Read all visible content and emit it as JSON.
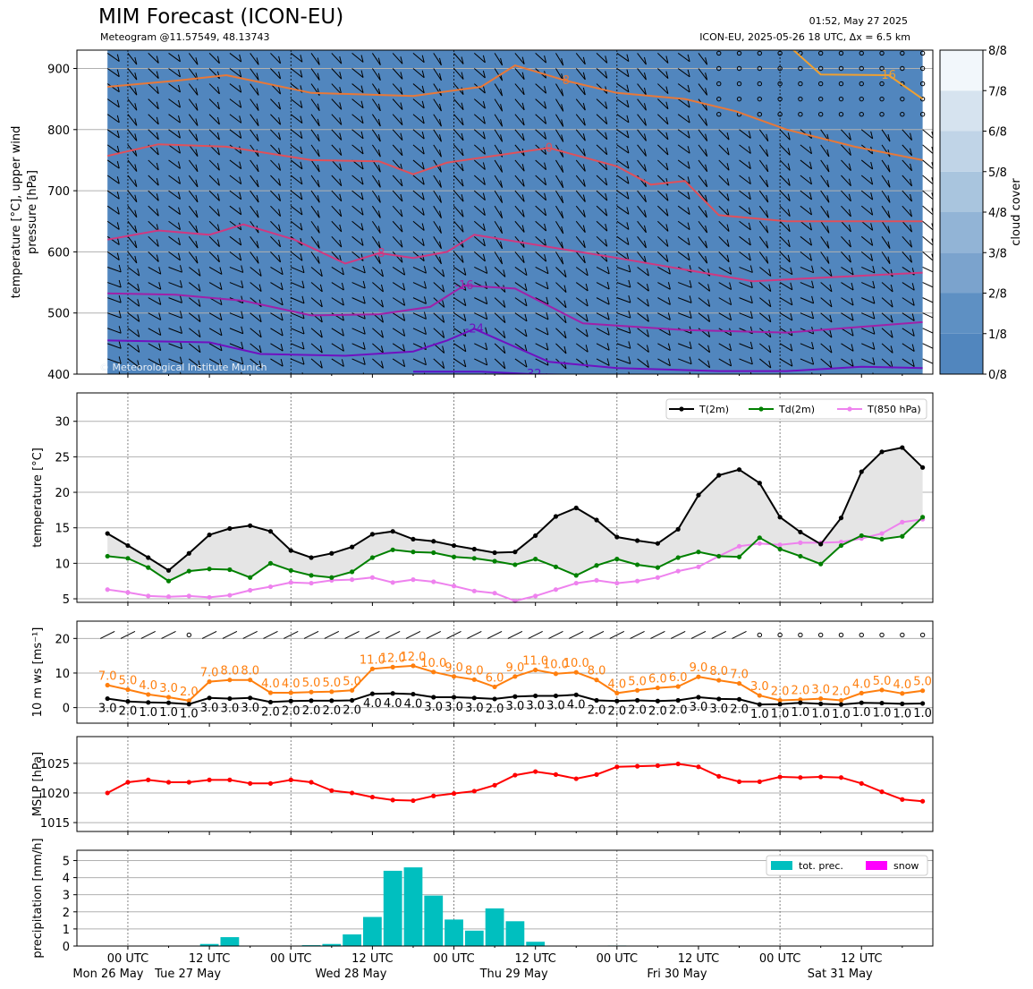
{
  "header": {
    "title": "MIM Forecast (ICON-EU)",
    "subtitle": "Meteogram @11.57549, 48.13743",
    "timestamp": "01:52, May 27 2025",
    "run_info": "ICON-EU, 2025-05-26 18 UTC, Δx = 6.5 km",
    "copyright": "© Meteorological Institute Munich"
  },
  "colors": {
    "cloud_levels": [
      "#5186be",
      "#5e90c3",
      "#7ba3cd",
      "#92b4d6",
      "#a9c5de",
      "#c0d4e7",
      "#d6e3ef",
      "#f2f7fb"
    ],
    "t2m": "#000000",
    "td2m": "#008000",
    "t850": "#ee82ee",
    "wind_speed": "#ff7f0e",
    "wind_gust_base": "#000000",
    "mslp": "#ff0000",
    "precip": "#00bfbf",
    "snow": "#ff00ff",
    "fill": "#e5e5e5"
  },
  "time_axis": {
    "ticks": [
      {
        "hour": 6,
        "label": "00 UTC"
      },
      {
        "hour": 30,
        "label": "12 UTC"
      },
      {
        "hour": 54,
        "label": "00 UTC"
      },
      {
        "hour": 78,
        "label": "12 UTC"
      },
      {
        "hour": 102,
        "label": "00 UTC"
      },
      {
        "hour": 126,
        "label": "12 UTC"
      },
      {
        "hour": 150,
        "label": "00 UTC"
      },
      {
        "hour": 174,
        "label": "12 UTC"
      },
      {
        "hour": 198,
        "label": "00 UTC"
      },
      {
        "hour": 222,
        "label": "12 UTC"
      }
    ],
    "days": [
      {
        "hour": 6,
        "label": "Mon 26 May"
      },
      {
        "hour": 30,
        "label": "Tue 27 May"
      },
      {
        "hour": 78,
        "label": "Wed 28 May"
      },
      {
        "hour": 126,
        "label": "Thu 29 May"
      },
      {
        "hour": 174,
        "label": "Fri 30 May"
      },
      {
        "hour": 222,
        "label": "Sat 31 May"
      }
    ],
    "xlim": [
      -9,
      243
    ]
  },
  "chart_data": [
    {
      "type": "heatmap",
      "name": "upper-air",
      "ylabel": "temperature [$^\\circ$C], upper wind\npressure [hPa]",
      "ylim": [
        930,
        400
      ],
      "yticks": [
        400,
        500,
        600,
        700,
        800,
        900
      ],
      "colorbar_label": "cloud cover",
      "colorbar_ticks": [
        "0/8",
        "1/8",
        "2/8",
        "3/8",
        "4/8",
        "5/8",
        "6/8",
        "7/8",
        "8/8"
      ],
      "isotherms": [
        {
          "label": "-32",
          "points": [
            [
              90,
              404
            ],
            [
              110,
              404
            ],
            [
              125,
              400
            ],
            [
              150,
              398
            ]
          ]
        },
        {
          "label": "-24",
          "points": [
            [
              0,
              455
            ],
            [
              30,
              452
            ],
            [
              45,
              433
            ],
            [
              70,
              430
            ],
            [
              90,
              437
            ],
            [
              100,
              455
            ],
            [
              108,
              474
            ],
            [
              130,
              420
            ],
            [
              150,
              410
            ],
            [
              180,
              405
            ],
            [
              200,
              405
            ],
            [
              222,
              412
            ],
            [
              240,
              410
            ]
          ]
        },
        {
          "label": "-16",
          "points": [
            [
              0,
              532
            ],
            [
              20,
              530
            ],
            [
              40,
              520
            ],
            [
              60,
              496
            ],
            [
              80,
              498
            ],
            [
              95,
              510
            ],
            [
              105,
              545
            ],
            [
              120,
              540
            ],
            [
              140,
              483
            ],
            [
              170,
              472
            ],
            [
              200,
              468
            ],
            [
              240,
              485
            ]
          ]
        },
        {
          "label": "-8",
          "points": [
            [
              0,
              620
            ],
            [
              15,
              635
            ],
            [
              30,
              628
            ],
            [
              40,
              645
            ],
            [
              55,
              620
            ],
            [
              70,
              581
            ],
            [
              80,
              598
            ],
            [
              90,
              590
            ],
            [
              100,
              600
            ],
            [
              108,
              628
            ],
            [
              150,
              590
            ],
            [
              190,
              552
            ],
            [
              240,
              566
            ]
          ]
        },
        {
          "label": "0",
          "points": [
            [
              0,
              757
            ],
            [
              15,
              776
            ],
            [
              35,
              772
            ],
            [
              60,
              750
            ],
            [
              80,
              748
            ],
            [
              90,
              727
            ],
            [
              100,
              746
            ],
            [
              130,
              770
            ],
            [
              150,
              740
            ],
            [
              160,
              710
            ],
            [
              170,
              716
            ],
            [
              180,
              660
            ],
            [
              200,
              650
            ],
            [
              240,
              650
            ]
          ]
        },
        {
          "label": "8",
          "points": [
            [
              0,
              870
            ],
            [
              20,
              880
            ],
            [
              35,
              889
            ],
            [
              60,
              860
            ],
            [
              90,
              855
            ],
            [
              110,
              870
            ],
            [
              120,
              905
            ],
            [
              135,
              880
            ],
            [
              150,
              860
            ],
            [
              170,
              850
            ],
            [
              185,
              830
            ],
            [
              200,
              800
            ],
            [
              220,
              772
            ],
            [
              240,
              750
            ]
          ]
        },
        {
          "label": "16",
          "points": [
            [
              200,
              940
            ],
            [
              210,
              890
            ],
            [
              230,
              889
            ],
            [
              240,
              850
            ]
          ]
        }
      ]
    },
    {
      "type": "line",
      "name": "temperature",
      "ylabel": "temperature [$^\\circ$C]",
      "ylim": [
        4.5,
        34
      ],
      "yticks": [
        5,
        10,
        15,
        20,
        25,
        30
      ],
      "x": [
        0,
        6,
        12,
        18,
        24,
        30,
        36,
        42,
        48,
        54,
        60,
        66,
        72,
        78,
        84,
        90,
        96,
        102,
        108,
        114,
        120,
        126,
        132,
        138,
        144,
        150,
        156,
        162,
        168,
        174,
        180,
        186,
        192,
        198,
        204,
        210,
        216,
        222,
        228,
        234,
        240
      ],
      "series": [
        {
          "name": "T(2m)",
          "values": [
            14.2,
            12.5,
            10.8,
            9.0,
            11.4,
            14.0,
            14.9,
            15.3,
            14.5,
            11.8,
            10.8,
            11.4,
            12.3,
            14.1,
            14.5,
            13.4,
            13.1,
            12.5,
            12.0,
            11.5,
            11.6,
            13.9,
            16.6,
            17.8,
            16.1,
            13.7,
            13.2,
            12.8,
            14.8,
            19.6,
            22.4,
            23.2,
            21.3,
            16.5,
            14.4,
            12.7,
            16.4,
            22.9,
            25.7,
            26.3,
            23.5
          ]
        },
        {
          "name": "Td(2m)",
          "values": [
            11.0,
            10.7,
            9.4,
            7.5,
            8.9,
            9.2,
            9.1,
            8.0,
            10.0,
            9.0,
            8.3,
            8.0,
            8.8,
            10.8,
            11.9,
            11.6,
            11.5,
            10.9,
            10.7,
            10.3,
            9.8,
            10.6,
            9.5,
            8.3,
            9.7,
            10.6,
            9.8,
            9.4,
            10.8,
            11.6,
            11.0,
            10.9,
            13.6,
            12.0,
            11.0,
            9.9,
            12.5,
            13.9,
            13.4,
            13.8,
            16.5
          ]
        },
        {
          "name": "T(850 hPa)",
          "values": [
            6.3,
            5.9,
            5.4,
            5.3,
            5.4,
            5.2,
            5.5,
            6.2,
            6.7,
            7.3,
            7.2,
            7.6,
            7.7,
            8.0,
            7.3,
            7.7,
            7.4,
            6.8,
            6.1,
            5.8,
            4.7,
            5.4,
            6.3,
            7.2,
            7.6,
            7.2,
            7.5,
            8.0,
            8.9,
            9.5,
            11.0,
            12.4,
            12.8,
            12.6,
            12.9,
            12.9,
            13.0,
            13.5,
            14.2,
            15.8,
            16.2
          ]
        }
      ]
    },
    {
      "type": "line",
      "name": "wind",
      "ylabel": "10 m ws [ms$^{-1}$]",
      "ylim": [
        -4.5,
        25
      ],
      "yticks": [
        0,
        10,
        20
      ],
      "x": [
        0,
        6,
        12,
        18,
        24,
        30,
        36,
        42,
        48,
        54,
        60,
        66,
        72,
        78,
        84,
        90,
        96,
        102,
        108,
        114,
        120,
        126,
        132,
        138,
        144,
        150,
        156,
        162,
        168,
        174,
        180,
        186,
        192,
        198,
        204,
        210,
        216,
        222,
        228,
        234,
        240
      ],
      "series": [
        {
          "name": "gust",
          "values": [
            6.5,
            5.2,
            3.8,
            3.0,
            2.0,
            7.5,
            8.0,
            8.0,
            4.3,
            4.3,
            4.5,
            4.6,
            5.0,
            11.2,
            11.7,
            12.1,
            10.3,
            9.0,
            8.1,
            6.0,
            9.0,
            10.9,
            9.8,
            10.2,
            8.0,
            4.2,
            5.0,
            5.7,
            6.1,
            8.9,
            7.9,
            7.0,
            3.5,
            2.1,
            2.3,
            2.6,
            2.1,
            4.2,
            5.1,
            4.1,
            4.9
          ]
        },
        {
          "name": "speed",
          "values": [
            2.6,
            1.8,
            1.5,
            1.4,
            1.0,
            2.8,
            2.6,
            2.8,
            1.6,
            1.9,
            2.0,
            2.0,
            2.1,
            4.0,
            4.1,
            3.9,
            3.0,
            3.0,
            2.8,
            2.5,
            3.2,
            3.4,
            3.4,
            3.7,
            2.1,
            1.9,
            2.1,
            1.9,
            2.1,
            3.0,
            2.5,
            2.4,
            0.9,
            1.0,
            1.4,
            1.1,
            0.9,
            1.4,
            1.3,
            1.1,
            1.2
          ]
        }
      ],
      "gust_labels": [
        "7.0",
        "5.0",
        "4.0",
        "3.0",
        "2.0",
        "7.0",
        "8.0",
        "8.0",
        "4.0",
        "4.0",
        "5.0",
        "5.0",
        "5.0",
        "11.0",
        "12.0",
        "12.0",
        "10.0",
        "9.0",
        "8.0",
        "6.0",
        "9.0",
        "11.0",
        "10.0",
        "10.0",
        "8.0",
        "4.0",
        "5.0",
        "6.0",
        "6.0",
        "9.0",
        "8.0",
        "7.0",
        "3.0",
        "2.0",
        "2.0",
        "3.0",
        "2.0",
        "4.0",
        "5.0",
        "4.0",
        "5.0"
      ],
      "speed_labels": [
        "3.0",
        "2.0",
        "1.0",
        "1.0",
        "1.0",
        "3.0",
        "3.0",
        "3.0",
        "2.0",
        "2.0",
        "2.0",
        "2.0",
        "2.0",
        "4.0",
        "4.0",
        "4.0",
        "3.0",
        "3.0",
        "3.0",
        "2.0",
        "3.0",
        "3.0",
        "3.0",
        "4.0",
        "2.0",
        "2.0",
        "2.0",
        "2.0",
        "2.0",
        "3.0",
        "3.0",
        "2.0",
        "1.0",
        "1.0",
        "1.0",
        "1.0",
        "1.0",
        "1.0",
        "1.0",
        "1.0",
        "1.0"
      ]
    },
    {
      "type": "line",
      "name": "pressure",
      "ylabel": "MSLP [hPa]",
      "ylim": [
        1013.5,
        1029.5
      ],
      "yticks": [
        1015,
        1020,
        1025
      ],
      "x": [
        0,
        6,
        12,
        18,
        24,
        30,
        36,
        42,
        48,
        54,
        60,
        66,
        72,
        78,
        84,
        90,
        96,
        102,
        108,
        114,
        120,
        126,
        132,
        138,
        144,
        150,
        156,
        162,
        168,
        174,
        180,
        186,
        192,
        198,
        204,
        210,
        216,
        222,
        228,
        234,
        240
      ],
      "series": [
        {
          "name": "MSLP",
          "values": [
            1020.0,
            1021.8,
            1022.2,
            1021.8,
            1021.8,
            1022.2,
            1022.2,
            1021.6,
            1021.6,
            1022.2,
            1021.8,
            1020.4,
            1020.0,
            1019.3,
            1018.8,
            1018.7,
            1019.5,
            1019.9,
            1020.3,
            1021.3,
            1023.0,
            1023.6,
            1023.1,
            1022.4,
            1023.1,
            1024.4,
            1024.5,
            1024.6,
            1024.9,
            1024.4,
            1022.8,
            1021.9,
            1021.9,
            1022.7,
            1022.6,
            1022.7,
            1022.6,
            1021.6,
            1020.2,
            1018.9,
            1018.6
          ]
        }
      ]
    },
    {
      "type": "bar",
      "name": "precipitation",
      "ylabel": "precipitation [mm/h]",
      "ylim": [
        0,
        5.6
      ],
      "yticks": [
        0,
        1,
        2,
        3,
        4,
        5
      ],
      "x": [
        0,
        6,
        12,
        18,
        24,
        30,
        36,
        42,
        48,
        54,
        60,
        66,
        72,
        78,
        84,
        90,
        96,
        102,
        108,
        114,
        120,
        126,
        132,
        138,
        144,
        150,
        156,
        162,
        168,
        174,
        180,
        186,
        192,
        198,
        204,
        210,
        216,
        222,
        228,
        234,
        240
      ],
      "series": [
        {
          "name": "tot. prec.",
          "values": [
            0,
            0.02,
            0.02,
            0,
            0,
            0.12,
            0.52,
            0,
            0.02,
            0,
            0.05,
            0.12,
            0.68,
            1.7,
            4.4,
            4.6,
            2.95,
            1.55,
            0.9,
            2.2,
            1.45,
            0.25,
            0,
            0,
            0,
            0.03,
            0.02,
            0,
            0,
            0,
            0,
            0,
            0,
            0,
            0,
            0,
            0,
            0,
            0,
            0,
            0
          ]
        },
        {
          "name": "snow",
          "values": [
            0,
            0,
            0,
            0,
            0,
            0,
            0,
            0,
            0,
            0,
            0,
            0,
            0,
            0,
            0,
            0,
            0,
            0,
            0,
            0,
            0,
            0,
            0,
            0,
            0,
            0,
            0,
            0,
            0,
            0,
            0,
            0,
            0,
            0,
            0,
            0,
            0,
            0,
            0,
            0,
            0
          ]
        }
      ]
    }
  ]
}
